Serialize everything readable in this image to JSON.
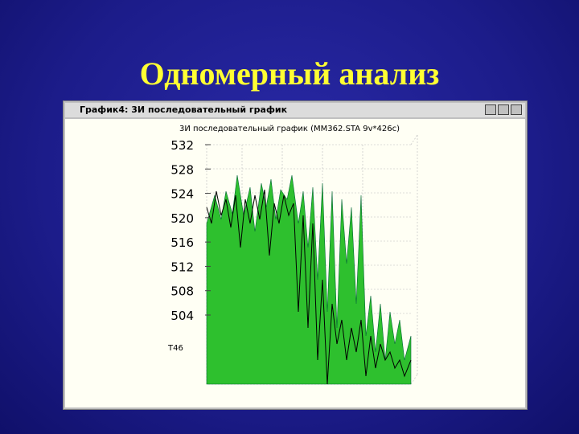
{
  "slide": {
    "title": "Одномерный анализ"
  },
  "window": {
    "title": "График4: 3И последовательный график"
  },
  "plot": {
    "title": "3И последовательный график (MM362.STA 9v*426c)",
    "y_ticks": [
      532,
      528,
      524,
      520,
      516,
      512,
      508,
      504
    ],
    "axis_label": "T46"
  }
}
